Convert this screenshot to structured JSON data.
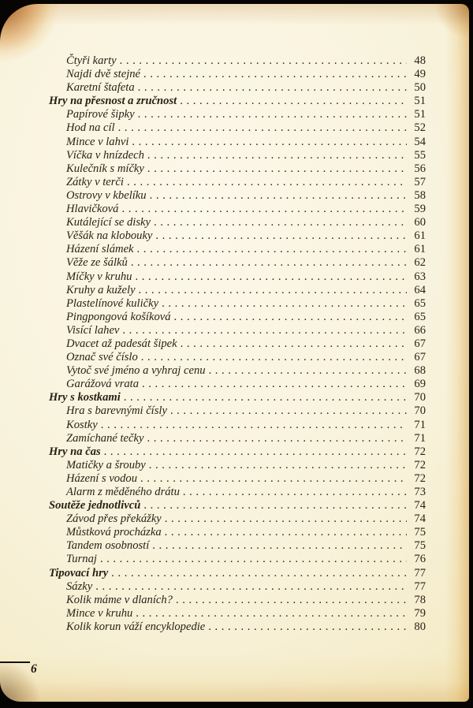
{
  "page": {
    "footer_page_number": "6"
  },
  "toc": {
    "entries": [
      {
        "label": "Čtyři karty",
        "page": "48",
        "section": false
      },
      {
        "label": "Najdi dvě stejné",
        "page": "49",
        "section": false
      },
      {
        "label": "Karetní štafeta",
        "page": "50",
        "section": false
      },
      {
        "label": "Hry na přesnost a zručnost",
        "page": "51",
        "section": true
      },
      {
        "label": "Papírové šipky",
        "page": "51",
        "section": false
      },
      {
        "label": "Hod na cíl",
        "page": "52",
        "section": false
      },
      {
        "label": "Mince v lahvi",
        "page": "54",
        "section": false
      },
      {
        "label": "Víčka v hnízdech",
        "page": "55",
        "section": false
      },
      {
        "label": "Kulečník s míčky",
        "page": "56",
        "section": false
      },
      {
        "label": "Zátky v terči",
        "page": "57",
        "section": false
      },
      {
        "label": "Ostrovy v kbelíku",
        "page": "58",
        "section": false
      },
      {
        "label": "Hlavičková",
        "page": "59",
        "section": false
      },
      {
        "label": "Kutálející se disky",
        "page": "60",
        "section": false
      },
      {
        "label": "Věšák na klobouky",
        "page": "61",
        "section": false
      },
      {
        "label": "Házení slámek",
        "page": "61",
        "section": false
      },
      {
        "label": "Věže ze šálků",
        "page": "62",
        "section": false
      },
      {
        "label": "Míčky v kruhu",
        "page": "63",
        "section": false
      },
      {
        "label": "Kruhy a kužely",
        "page": "64",
        "section": false
      },
      {
        "label": "Plastelínové kuličky",
        "page": "65",
        "section": false
      },
      {
        "label": "Pingpongová košíková",
        "page": "65",
        "section": false
      },
      {
        "label": "Visící lahev",
        "page": "66",
        "section": false
      },
      {
        "label": "Dvacet až padesát šipek",
        "page": "67",
        "section": false
      },
      {
        "label": "Označ své číslo",
        "page": "67",
        "section": false
      },
      {
        "label": "Vytoč své jméno a vyhraj cenu",
        "page": "68",
        "section": false
      },
      {
        "label": "Garážová vrata",
        "page": "69",
        "section": false
      },
      {
        "label": "Hry s kostkami",
        "page": "70",
        "section": true
      },
      {
        "label": "Hra s barevnými čísly",
        "page": "70",
        "section": false
      },
      {
        "label": "Kostky",
        "page": "71",
        "section": false
      },
      {
        "label": "Zamíchané tečky",
        "page": "71",
        "section": false
      },
      {
        "label": "Hry na čas",
        "page": "72",
        "section": true
      },
      {
        "label": "Matičky a šrouby",
        "page": "72",
        "section": false
      },
      {
        "label": "Házení s vodou",
        "page": "72",
        "section": false
      },
      {
        "label": "Alarm z měděného drátu",
        "page": "73",
        "section": false
      },
      {
        "label": "Soutěže jednotlivců",
        "page": "74",
        "section": true
      },
      {
        "label": "Závod přes překážky",
        "page": "74",
        "section": false
      },
      {
        "label": "Můstková procházka",
        "page": "75",
        "section": false
      },
      {
        "label": "Tandem osobností",
        "page": "75",
        "section": false
      },
      {
        "label": "Turnaj",
        "page": "76",
        "section": false
      },
      {
        "label": "Tipovací hry",
        "page": "77",
        "section": true
      },
      {
        "label": "Sázky",
        "page": "77",
        "section": false
      },
      {
        "label": "Kolik máme v dlaních?",
        "page": "78",
        "section": false
      },
      {
        "label": "Mince v kruhu",
        "page": "79",
        "section": false
      },
      {
        "label": "Kolik korun váží encyklopedie",
        "page": "80",
        "section": false
      }
    ]
  }
}
